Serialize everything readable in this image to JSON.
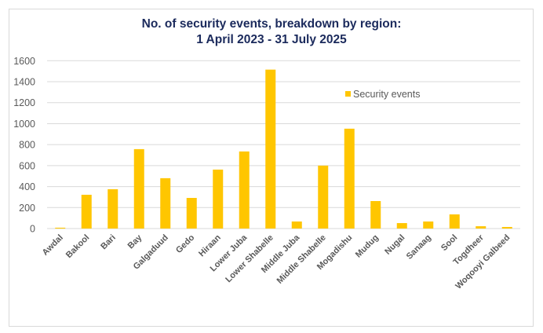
{
  "chart_data": {
    "type": "bar",
    "title": "No. of security events, breakdown by region:",
    "subtitle": "1 April 2023 - 31 July 2025",
    "xlabel": "",
    "ylabel": "",
    "ylim": [
      0,
      1600
    ],
    "yticks": [
      0,
      200,
      400,
      600,
      800,
      1000,
      1200,
      1400,
      1600
    ],
    "grid": true,
    "legend": "top-right",
    "categories": [
      "Awdal",
      "Bakool",
      "Bari",
      "Bay",
      "Galgaduud",
      "Gedo",
      "Hiraan",
      "Lower Juba",
      "Lower Shabelle",
      "Middle Juba",
      "Middle Shabelle",
      "Mogadishu",
      "Mudug",
      "Nugal",
      "Sanaag",
      "Sool",
      "Togdheer",
      "Woqooyi Galbeed"
    ],
    "series": [
      {
        "name": "Security events",
        "color": "#ffc600",
        "values": [
          8,
          322,
          375,
          757,
          480,
          292,
          562,
          735,
          1515,
          67,
          600,
          952,
          262,
          52,
          67,
          135,
          22,
          15
        ]
      }
    ]
  }
}
